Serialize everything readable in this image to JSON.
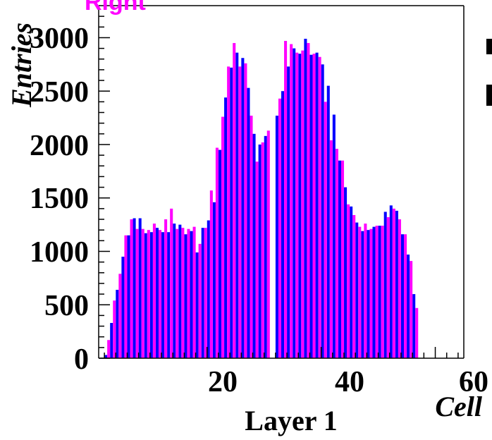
{
  "chart_data": {
    "type": "bar",
    "xlabel": "Cell",
    "ylabel": "Entries",
    "subtitle": "Layer 1",
    "xlim": [
      1,
      65
    ],
    "ylim": [
      0,
      3300
    ],
    "x_ticks": [
      20,
      40,
      60
    ],
    "y_ticks": [
      0,
      500,
      1000,
      1500,
      2000,
      2500,
      3000
    ],
    "legend_label": "Right",
    "colors": {
      "blue": "#0000ff",
      "magenta": "#ff00ff"
    },
    "series": [
      {
        "color": "#0000ff",
        "x": [
          1,
          2,
          3,
          4,
          5,
          6,
          7,
          8,
          9,
          10,
          11,
          12,
          13,
          14,
          15,
          16,
          17,
          18,
          19,
          20,
          21,
          22,
          23,
          24,
          25,
          26,
          27,
          28,
          29,
          30,
          31,
          32,
          33,
          34,
          35,
          36,
          37,
          38,
          39,
          40,
          41,
          42,
          43,
          44,
          45,
          46,
          47,
          48,
          49,
          50,
          51,
          52,
          53,
          54,
          55,
          56,
          57
        ],
        "values": [
          0,
          30,
          330,
          640,
          950,
          1150,
          1310,
          1310,
          1170,
          1180,
          1220,
          1180,
          1180,
          1260,
          1250,
          1160,
          1190,
          990,
          1220,
          1290,
          1460,
          1950,
          2440,
          2720,
          2860,
          2810,
          2530,
          2100,
          2000,
          2080,
          0,
          2270,
          2500,
          2730,
          2900,
          2850,
          2990,
          2840,
          2860,
          2750,
          2550,
          2280,
          1850,
          1600,
          1420,
          1270,
          1190,
          1200,
          1230,
          1240,
          1370,
          1430,
          1380,
          1160,
          970,
          600,
          0
        ]
      },
      {
        "color": "#ff00ff",
        "x": [
          1,
          2,
          3,
          4,
          5,
          6,
          7,
          8,
          9,
          10,
          11,
          12,
          13,
          14,
          15,
          16,
          17,
          18,
          19,
          20,
          21,
          22,
          23,
          24,
          25,
          26,
          27,
          28,
          29,
          30,
          31,
          32,
          33,
          34,
          35,
          36,
          37,
          38,
          39,
          40,
          41,
          42,
          43,
          44,
          45,
          46,
          47,
          48,
          49,
          50,
          51,
          52,
          53,
          54,
          55,
          56,
          57
        ],
        "values": [
          0,
          170,
          540,
          790,
          1150,
          1300,
          1210,
          1210,
          1200,
          1260,
          1200,
          1300,
          1400,
          1210,
          1220,
          1210,
          1230,
          1070,
          1220,
          1570,
          1970,
          2260,
          2730,
          2950,
          2730,
          2760,
          2270,
          1840,
          2020,
          2130,
          0,
          2430,
          2970,
          2940,
          2860,
          2880,
          2950,
          2850,
          2820,
          2400,
          2040,
          1960,
          1850,
          1440,
          1340,
          1230,
          1260,
          1210,
          1240,
          1240,
          1320,
          1400,
          1300,
          1160,
          910,
          470,
          0
        ]
      }
    ]
  }
}
